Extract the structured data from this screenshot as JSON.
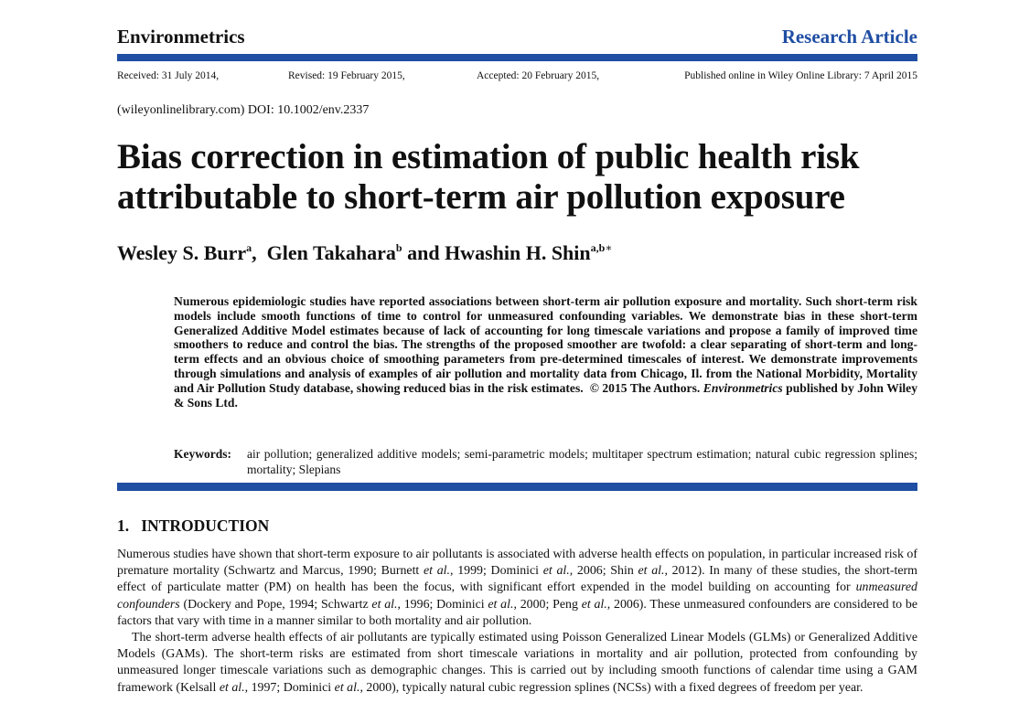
{
  "header": {
    "journal": "Environmetrics",
    "article_type": "Research Article"
  },
  "dates": {
    "received": "Received: 31 July 2014,",
    "revised": "Revised: 19 February 2015,",
    "accepted": "Accepted: 20 February 2015,",
    "published": "Published online in Wiley Online Library: 7 April 2015"
  },
  "doi": "(wileyonlinelibrary.com) DOI: 10.1002/env.2337",
  "title": "Bias correction in estimation of public health risk attributable to short-term air pollution exposure",
  "authors": [
    {
      "name": "Wesley S. Burr",
      "affil": "a",
      "sep": ",  "
    },
    {
      "name": "Glen Takahara",
      "affil": "b",
      "sep": " and "
    },
    {
      "name": "Hwashin H. Shin",
      "affil": "a,b",
      "sep": ""
    }
  ],
  "corresponding_mark": "∗",
  "abstract": {
    "text": "Numerous epidemiologic studies have reported associations between short-term air pollution exposure and mortality. Such short-term risk models include smooth functions of time to control for unmeasured confounding variables. We demonstrate bias in these short-term Generalized Additive Model estimates because of lack of accounting for long timescale variations and propose a family of improved time smoothers to reduce and control the bias. The strengths of the proposed smoother are twofold: a clear separating of short-term and long-term effects and an obvious choice of smoothing parameters from pre-determined timescales of interest. We demonstrate improvements through simulations and analysis of examples of air pollution and mortality data from Chicago, Il. from the National Morbidity, Mortality and Air Pollution Study database, showing reduced bias in the risk estimates.",
    "copyright_pre": "  © 2015 The Authors. ",
    "copyright_journal": "Environmetrics",
    "copyright_post": " published by John Wiley & Sons Ltd."
  },
  "keywords": {
    "label": "Keywords:",
    "text": "air pollution; generalized additive models; semi-parametric models; multitaper spectrum estimation; natural cubic regression splines; mortality; Slepians"
  },
  "section": {
    "number": "1.",
    "title": "INTRODUCTION"
  },
  "paragraphs": [
    [
      {
        "t": "Numerous studies have shown that short-term exposure to air pollutants is associated with adverse health effects on population, in particular increased risk of premature mortality (Schwartz and Marcus, 1990; Burnett "
      },
      {
        "t": "et al.",
        "i": true
      },
      {
        "t": ", 1999; Dominici "
      },
      {
        "t": "et al.",
        "i": true
      },
      {
        "t": ", 2006; Shin "
      },
      {
        "t": "et al.",
        "i": true
      },
      {
        "t": ", 2012). In many of these studies, the short-term effect of particulate matter (PM) on health has been the focus, with significant effort expended in the model building on accounting for "
      },
      {
        "t": "unmeasured confounders",
        "i": true
      },
      {
        "t": " (Dockery and Pope, 1994; Schwartz "
      },
      {
        "t": "et al.",
        "i": true
      },
      {
        "t": ", 1996; Dominici "
      },
      {
        "t": "et al.",
        "i": true
      },
      {
        "t": ", 2000; Peng "
      },
      {
        "t": "et al.",
        "i": true
      },
      {
        "t": ", 2006). These unmeasured confounders are considered to be factors that vary with time in a manner similar to both mortality and air pollution."
      }
    ],
    [
      {
        "t": "The short-term adverse health effects of air pollutants are typically estimated using Poisson Generalized Linear Models (GLMs) or Generalized Additive Models (GAMs). The short-term risks are estimated from short timescale variations in mortality and air pollution, protected from confounding by unmeasured longer timescale variations such as demographic changes. This is carried out by including smooth functions of calendar time using a GAM framework (Kelsall "
      },
      {
        "t": "et al.",
        "i": true
      },
      {
        "t": ", 1997; Dominici "
      },
      {
        "t": "et al.",
        "i": true
      },
      {
        "t": ", 2000), typically natural cubic regression splines (NCSs) with a fixed degrees of freedom per year."
      }
    ]
  ]
}
